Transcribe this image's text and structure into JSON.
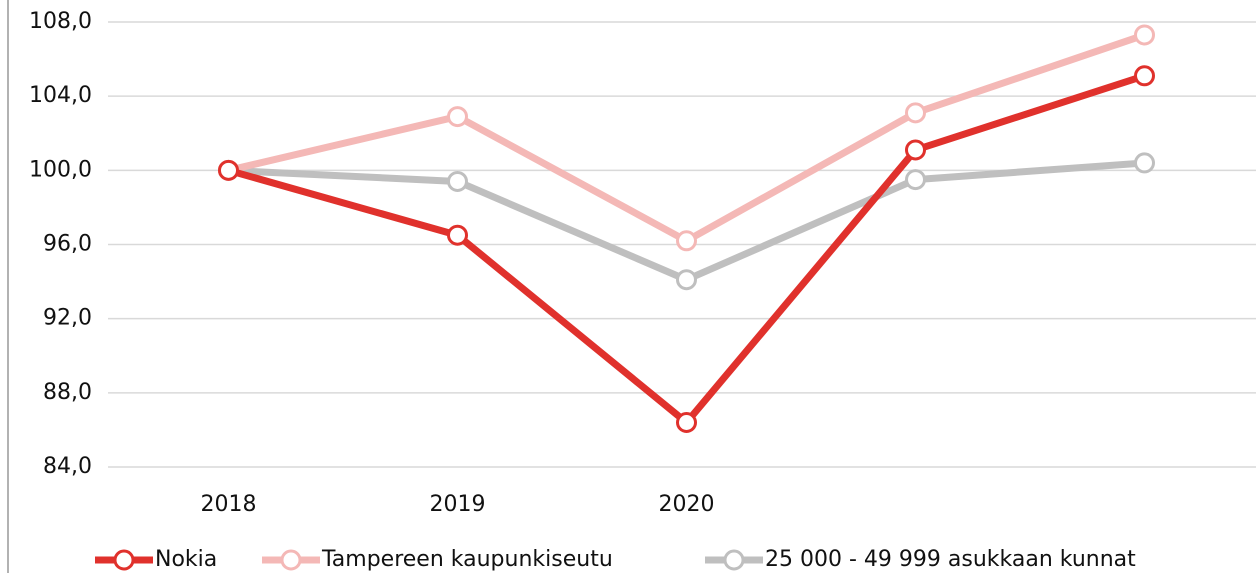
{
  "chart_data": {
    "type": "line",
    "categories": [
      "2018",
      "2019",
      "2020",
      null,
      null
    ],
    "series": [
      {
        "name": "Nokia",
        "color": "#e0312c",
        "values": [
          100.0,
          96.5,
          86.4,
          101.1,
          105.1
        ]
      },
      {
        "name": "Tampereen kaupunkiseutu",
        "color": "#f4b8b6",
        "values": [
          100.0,
          102.9,
          96.2,
          103.1,
          107.3
        ]
      },
      {
        "name": "25 000 - 49 999 asukkaan kunnat",
        "color": "#bfbfbf",
        "values": [
          100.0,
          99.4,
          94.1,
          99.5,
          100.4
        ]
      }
    ],
    "ylim": [
      84,
      108
    ],
    "yticks": [
      {
        "value": 84,
        "label": "84,0"
      },
      {
        "value": 88,
        "label": "88,0"
      },
      {
        "value": 92,
        "label": "92,0"
      },
      {
        "value": 96,
        "label": "96,0"
      },
      {
        "value": 100,
        "label": "100,0"
      },
      {
        "value": 104,
        "label": "104,0"
      },
      {
        "value": 108,
        "label": "108,0"
      }
    ],
    "grid": true,
    "legend": "bottom"
  }
}
